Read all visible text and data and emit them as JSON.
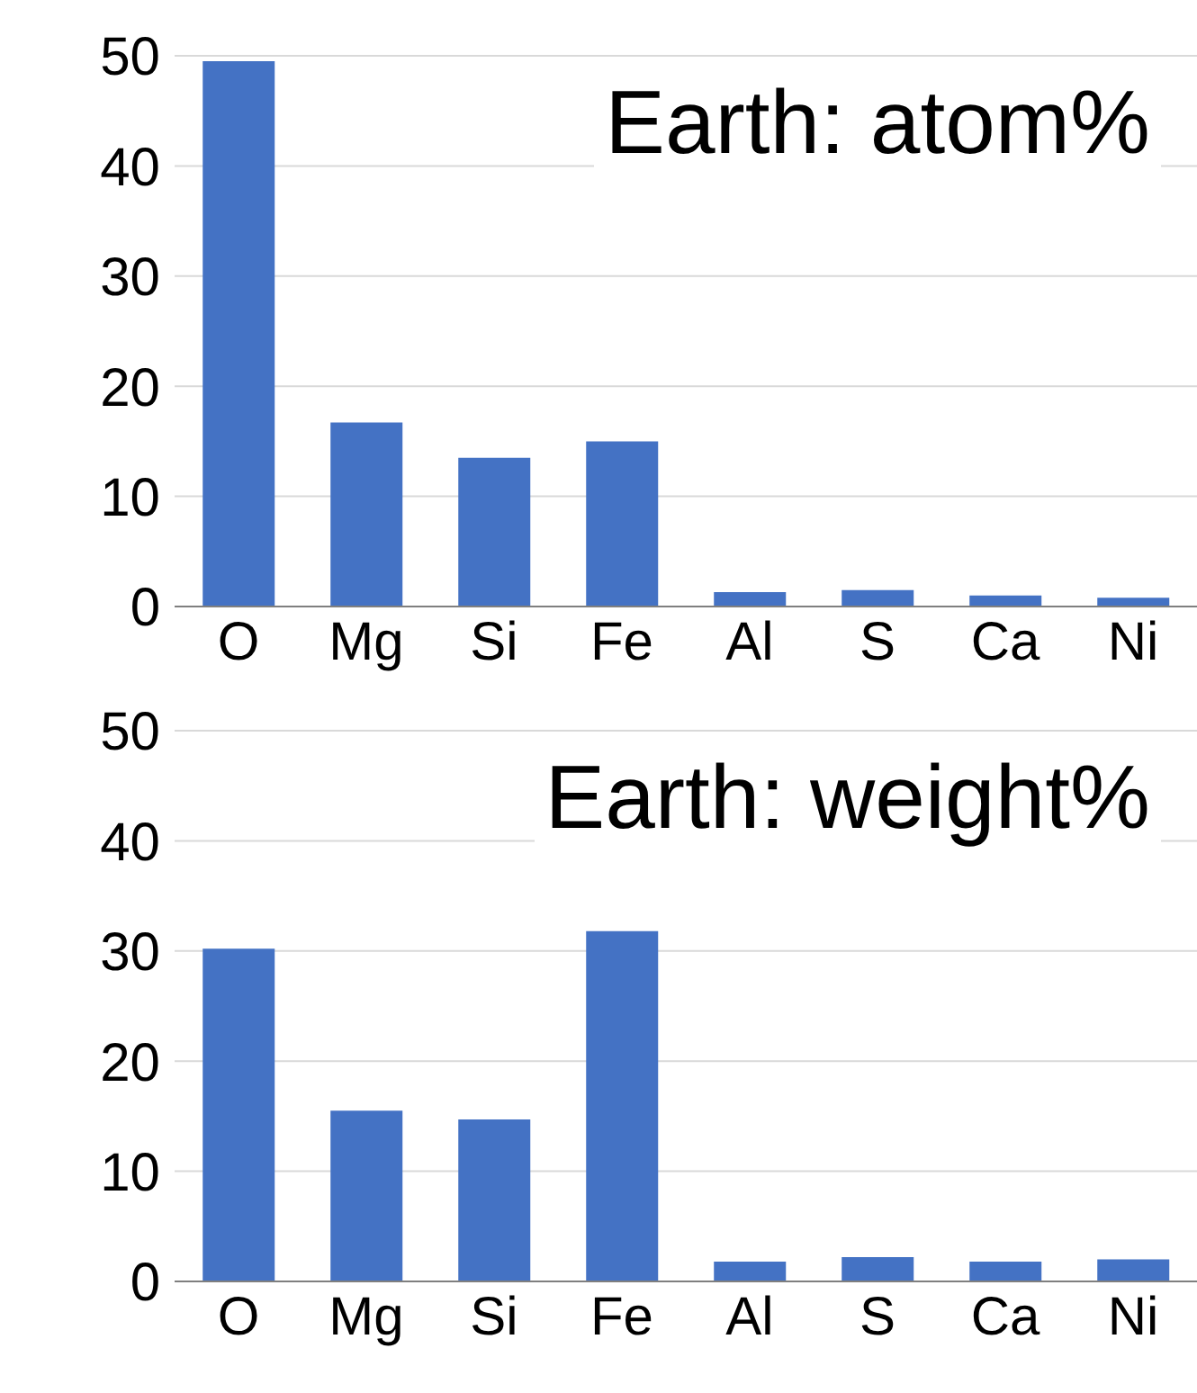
{
  "chart_data": [
    {
      "type": "bar",
      "title": "Earth: atom%",
      "categories": [
        "O",
        "Mg",
        "Si",
        "Fe",
        "Al",
        "S",
        "Ca",
        "Ni"
      ],
      "values": [
        49.5,
        16.7,
        13.5,
        15.0,
        1.3,
        1.5,
        1.0,
        0.8
      ],
      "color": "#4472c4",
      "ylim": [
        0,
        50
      ],
      "yticks": [
        0,
        10,
        20,
        30,
        40,
        50
      ],
      "grid": "y",
      "legend": false
    },
    {
      "type": "bar",
      "title": "Earth: weight%",
      "categories": [
        "O",
        "Mg",
        "Si",
        "Fe",
        "Al",
        "S",
        "Ca",
        "Ni"
      ],
      "values": [
        30.2,
        15.5,
        14.7,
        31.8,
        1.8,
        2.2,
        1.8,
        2.0
      ],
      "color": "#4472c4",
      "ylim": [
        0,
        50
      ],
      "yticks": [
        0,
        10,
        20,
        30,
        40,
        50
      ],
      "grid": "y",
      "legend": false
    }
  ]
}
